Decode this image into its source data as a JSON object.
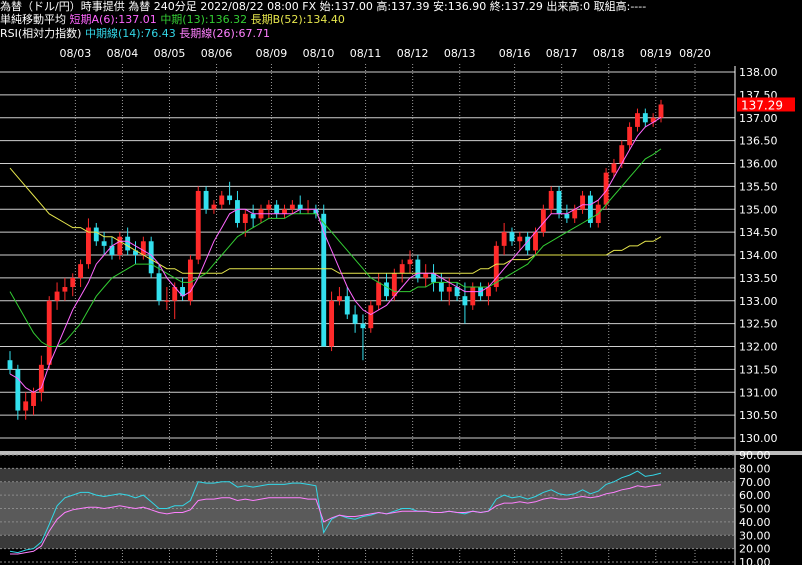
{
  "header": {
    "line1": "為替（ドル/円）時事提供 為替 240分足 2022/08/22 08:00 FX 始:137.00 高:137.39 安:136.90 終:137.29 出来高:0 取組高:----",
    "ma_title": "単純移動平均",
    "ma_short": "短期A(6):137.01",
    "ma_mid": "中期(13):136.32",
    "ma_long": "長期B(52):134.40",
    "rsi_title": "RSI(相対力指数)",
    "rsi_mid": "中期線(14):76.43",
    "rsi_long": "長期線(26):67.71"
  },
  "colors": {
    "up": "#ff2a2a",
    "down": "#33e0ee",
    "ma_short": "#ff66ff",
    "ma_mid": "#33cc33",
    "ma_long": "#e6e64d",
    "rsi_mid": "#33d6e6",
    "rsi_long": "#ff80ff",
    "grid": "#ffffff",
    "price_badge": "#ff0000"
  },
  "chart_data": [
    {
      "type": "candlestick",
      "title": "為替（ドル/円）240分足",
      "dates": [
        "08/03",
        "08/04",
        "08/05",
        "08/06",
        "08/09",
        "08/10",
        "08/11",
        "08/12",
        "08/13",
        "08/16",
        "08/17",
        "08/18",
        "08/19",
        "08/20"
      ],
      "ylim": [
        129.8,
        138.0
      ],
      "yticks": [
        "138.00",
        "137.50",
        "137.00",
        "136.50",
        "136.00",
        "135.50",
        "135.00",
        "134.50",
        "134.00",
        "133.50",
        "133.00",
        "132.50",
        "132.00",
        "131.50",
        "131.00",
        "130.50",
        "130.00"
      ],
      "last_price": "137.29",
      "candles": [
        {
          "o": 131.7,
          "h": 131.9,
          "l": 131.4,
          "c": 131.5
        },
        {
          "o": 131.5,
          "h": 131.6,
          "l": 130.4,
          "c": 130.6
        },
        {
          "o": 130.6,
          "h": 131.0,
          "l": 130.4,
          "c": 130.8
        },
        {
          "o": 130.7,
          "h": 131.1,
          "l": 130.5,
          "c": 131.0
        },
        {
          "o": 131.0,
          "h": 131.8,
          "l": 130.8,
          "c": 131.6
        },
        {
          "o": 131.6,
          "h": 133.1,
          "l": 131.5,
          "c": 133.0
        },
        {
          "o": 133.0,
          "h": 133.4,
          "l": 132.8,
          "c": 133.2
        },
        {
          "o": 133.2,
          "h": 133.5,
          "l": 133.0,
          "c": 133.3
        },
        {
          "o": 133.3,
          "h": 133.6,
          "l": 133.1,
          "c": 133.5
        },
        {
          "o": 133.5,
          "h": 133.9,
          "l": 133.3,
          "c": 133.8
        },
        {
          "o": 133.8,
          "h": 134.8,
          "l": 133.7,
          "c": 134.6
        },
        {
          "o": 134.6,
          "h": 134.7,
          "l": 134.2,
          "c": 134.3
        },
        {
          "o": 134.3,
          "h": 134.5,
          "l": 134.0,
          "c": 134.2
        },
        {
          "o": 134.2,
          "h": 134.4,
          "l": 133.9,
          "c": 134.0
        },
        {
          "o": 134.0,
          "h": 134.5,
          "l": 133.9,
          "c": 134.4
        },
        {
          "o": 134.4,
          "h": 134.6,
          "l": 134.0,
          "c": 134.1
        },
        {
          "o": 134.1,
          "h": 134.3,
          "l": 133.8,
          "c": 134.0
        },
        {
          "o": 134.0,
          "h": 134.4,
          "l": 133.9,
          "c": 134.3
        },
        {
          "o": 134.3,
          "h": 134.4,
          "l": 133.5,
          "c": 133.6
        },
        {
          "o": 133.6,
          "h": 133.8,
          "l": 132.9,
          "c": 133.0
        },
        {
          "o": 133.0,
          "h": 133.3,
          "l": 132.8,
          "c": 133.0
        },
        {
          "o": 133.0,
          "h": 133.4,
          "l": 132.6,
          "c": 133.3
        },
        {
          "o": 133.3,
          "h": 133.5,
          "l": 133.0,
          "c": 133.1
        },
        {
          "o": 133.0,
          "h": 134.0,
          "l": 132.9,
          "c": 133.9
        },
        {
          "o": 133.9,
          "h": 135.5,
          "l": 133.8,
          "c": 135.4
        },
        {
          "o": 135.4,
          "h": 135.5,
          "l": 134.9,
          "c": 135.0
        },
        {
          "o": 135.0,
          "h": 135.2,
          "l": 134.9,
          "c": 135.1
        },
        {
          "o": 135.1,
          "h": 135.4,
          "l": 135.0,
          "c": 135.3
        },
        {
          "o": 135.3,
          "h": 135.6,
          "l": 135.1,
          "c": 135.2
        },
        {
          "o": 135.2,
          "h": 135.4,
          "l": 134.6,
          "c": 134.7
        },
        {
          "o": 134.7,
          "h": 135.0,
          "l": 134.4,
          "c": 134.9
        },
        {
          "o": 134.9,
          "h": 135.1,
          "l": 134.6,
          "c": 134.8
        },
        {
          "o": 134.8,
          "h": 135.1,
          "l": 134.7,
          "c": 135.0
        },
        {
          "o": 135.0,
          "h": 135.2,
          "l": 134.8,
          "c": 135.1
        },
        {
          "o": 135.1,
          "h": 135.2,
          "l": 134.8,
          "c": 134.9
        },
        {
          "o": 134.9,
          "h": 135.1,
          "l": 134.8,
          "c": 135.0
        },
        {
          "o": 135.0,
          "h": 135.2,
          "l": 134.9,
          "c": 135.1
        },
        {
          "o": 135.1,
          "h": 135.3,
          "l": 134.9,
          "c": 135.0
        },
        {
          "o": 135.0,
          "h": 135.2,
          "l": 134.9,
          "c": 135.0
        },
        {
          "o": 135.0,
          "h": 135.1,
          "l": 134.8,
          "c": 134.9
        },
        {
          "o": 134.9,
          "h": 135.1,
          "l": 132.0,
          "c": 132.0
        },
        {
          "o": 132.0,
          "h": 133.2,
          "l": 131.9,
          "c": 133.0
        },
        {
          "o": 133.0,
          "h": 133.3,
          "l": 132.9,
          "c": 133.1
        },
        {
          "o": 133.1,
          "h": 133.3,
          "l": 132.6,
          "c": 132.7
        },
        {
          "o": 132.7,
          "h": 132.9,
          "l": 132.3,
          "c": 132.5
        },
        {
          "o": 132.5,
          "h": 132.7,
          "l": 131.7,
          "c": 132.4
        },
        {
          "o": 132.4,
          "h": 133.0,
          "l": 132.3,
          "c": 132.9
        },
        {
          "o": 132.9,
          "h": 133.6,
          "l": 132.8,
          "c": 133.4
        },
        {
          "o": 133.4,
          "h": 133.6,
          "l": 133.0,
          "c": 133.1
        },
        {
          "o": 133.1,
          "h": 133.7,
          "l": 133.0,
          "c": 133.6
        },
        {
          "o": 133.6,
          "h": 133.9,
          "l": 133.4,
          "c": 133.8
        },
        {
          "o": 133.8,
          "h": 134.1,
          "l": 133.6,
          "c": 133.9
        },
        {
          "o": 133.9,
          "h": 134.0,
          "l": 133.4,
          "c": 133.5
        },
        {
          "o": 133.5,
          "h": 133.8,
          "l": 133.3,
          "c": 133.6
        },
        {
          "o": 133.6,
          "h": 133.8,
          "l": 133.2,
          "c": 133.4
        },
        {
          "o": 133.4,
          "h": 133.6,
          "l": 133.0,
          "c": 133.2
        },
        {
          "o": 133.2,
          "h": 133.5,
          "l": 132.9,
          "c": 133.3
        },
        {
          "o": 133.3,
          "h": 133.4,
          "l": 133.0,
          "c": 133.1
        },
        {
          "o": 133.1,
          "h": 133.4,
          "l": 132.5,
          "c": 132.9
        },
        {
          "o": 132.9,
          "h": 133.4,
          "l": 132.8,
          "c": 133.3
        },
        {
          "o": 133.3,
          "h": 133.4,
          "l": 133.0,
          "c": 133.1
        },
        {
          "o": 133.1,
          "h": 133.4,
          "l": 132.9,
          "c": 133.3
        },
        {
          "o": 133.3,
          "h": 134.3,
          "l": 133.2,
          "c": 134.2
        },
        {
          "o": 134.2,
          "h": 134.7,
          "l": 134.0,
          "c": 134.5
        },
        {
          "o": 134.5,
          "h": 134.6,
          "l": 134.2,
          "c": 134.3
        },
        {
          "o": 134.3,
          "h": 134.5,
          "l": 134.1,
          "c": 134.4
        },
        {
          "o": 134.4,
          "h": 134.5,
          "l": 134.0,
          "c": 134.1
        },
        {
          "o": 134.1,
          "h": 134.6,
          "l": 134.0,
          "c": 134.5
        },
        {
          "o": 134.5,
          "h": 135.1,
          "l": 134.4,
          "c": 135.0
        },
        {
          "o": 135.0,
          "h": 135.5,
          "l": 134.9,
          "c": 135.4
        },
        {
          "o": 135.4,
          "h": 135.5,
          "l": 134.8,
          "c": 134.9
        },
        {
          "o": 134.9,
          "h": 135.1,
          "l": 134.7,
          "c": 134.8
        },
        {
          "o": 134.8,
          "h": 135.1,
          "l": 134.7,
          "c": 135.0
        },
        {
          "o": 135.0,
          "h": 135.4,
          "l": 134.9,
          "c": 135.3
        },
        {
          "o": 135.3,
          "h": 135.4,
          "l": 134.6,
          "c": 134.7
        },
        {
          "o": 134.7,
          "h": 135.2,
          "l": 134.6,
          "c": 135.1
        },
        {
          "o": 135.1,
          "h": 135.9,
          "l": 135.0,
          "c": 135.8
        },
        {
          "o": 135.8,
          "h": 136.1,
          "l": 135.7,
          "c": 136.0
        },
        {
          "o": 136.0,
          "h": 136.5,
          "l": 135.9,
          "c": 136.4
        },
        {
          "o": 136.4,
          "h": 136.9,
          "l": 136.3,
          "c": 136.8
        },
        {
          "o": 136.8,
          "h": 137.2,
          "l": 136.7,
          "c": 137.1
        },
        {
          "o": 137.1,
          "h": 137.2,
          "l": 136.8,
          "c": 136.9
        },
        {
          "o": 136.9,
          "h": 137.1,
          "l": 136.8,
          "c": 137.0
        },
        {
          "o": 137.0,
          "h": 137.39,
          "l": 136.9,
          "c": 137.29
        }
      ],
      "ma_short": [
        131.4,
        131.3,
        131.1,
        131.0,
        131.1,
        131.6,
        132.0,
        132.4,
        132.8,
        133.1,
        133.4,
        133.8,
        134.0,
        134.2,
        134.3,
        134.3,
        134.2,
        134.1,
        134.0,
        133.8,
        133.5,
        133.3,
        133.1,
        133.2,
        133.5,
        133.9,
        134.3,
        134.6,
        134.9,
        135.0,
        135.0,
        134.9,
        134.9,
        134.9,
        134.9,
        134.9,
        134.9,
        135.0,
        135.0,
        135.0,
        134.5,
        134.1,
        133.7,
        133.3,
        133.0,
        132.8,
        132.7,
        132.8,
        132.9,
        133.1,
        133.3,
        133.5,
        133.6,
        133.6,
        133.6,
        133.5,
        133.4,
        133.3,
        133.2,
        133.2,
        133.2,
        133.3,
        133.5,
        133.7,
        133.9,
        134.1,
        134.3,
        134.5,
        134.7,
        134.9,
        134.9,
        134.9,
        135.0,
        135.1,
        135.1,
        135.2,
        135.4,
        135.7,
        136.0,
        136.3,
        136.6,
        136.8,
        136.9,
        137.01
      ],
      "ma_mid": [
        133.2,
        132.9,
        132.6,
        132.3,
        132.1,
        132.0,
        132.0,
        132.1,
        132.3,
        132.5,
        132.8,
        133.1,
        133.3,
        133.5,
        133.6,
        133.7,
        133.8,
        133.8,
        133.8,
        133.7,
        133.6,
        133.5,
        133.4,
        133.4,
        133.5,
        133.6,
        133.8,
        134.0,
        134.2,
        134.4,
        134.5,
        134.6,
        134.7,
        134.8,
        134.8,
        134.8,
        134.9,
        134.9,
        134.9,
        134.9,
        134.7,
        134.5,
        134.3,
        134.1,
        133.9,
        133.7,
        133.5,
        133.4,
        133.3,
        133.2,
        133.2,
        133.2,
        133.3,
        133.3,
        133.4,
        133.4,
        133.4,
        133.4,
        133.3,
        133.3,
        133.3,
        133.3,
        133.4,
        133.5,
        133.6,
        133.7,
        133.8,
        134.0,
        134.2,
        134.3,
        134.4,
        134.5,
        134.6,
        134.7,
        134.8,
        134.9,
        135.1,
        135.3,
        135.5,
        135.7,
        135.9,
        136.1,
        136.2,
        136.32
      ],
      "ma_long": [
        135.9,
        135.7,
        135.5,
        135.3,
        135.1,
        134.9,
        134.8,
        134.7,
        134.6,
        134.6,
        134.5,
        134.5,
        134.4,
        134.4,
        134.3,
        134.2,
        134.1,
        134.0,
        133.9,
        133.8,
        133.7,
        133.7,
        133.6,
        133.6,
        133.6,
        133.6,
        133.6,
        133.6,
        133.7,
        133.7,
        133.7,
        133.7,
        133.7,
        133.7,
        133.7,
        133.7,
        133.7,
        133.7,
        133.7,
        133.7,
        133.7,
        133.7,
        133.6,
        133.6,
        133.6,
        133.6,
        133.6,
        133.6,
        133.6,
        133.6,
        133.6,
        133.6,
        133.6,
        133.6,
        133.6,
        133.6,
        133.6,
        133.6,
        133.6,
        133.6,
        133.7,
        133.7,
        133.8,
        133.8,
        133.9,
        133.9,
        133.9,
        134.0,
        134.0,
        134.0,
        134.0,
        134.0,
        134.0,
        134.0,
        134.0,
        134.0,
        134.0,
        134.1,
        134.1,
        134.2,
        134.2,
        134.3,
        134.3,
        134.4
      ]
    },
    {
      "type": "line",
      "title": "RSI(相対力指数)",
      "ylim": [
        10,
        90
      ],
      "yticks": [
        "90.00",
        "80.00",
        "70.00",
        "60.00",
        "50.00",
        "40.00",
        "30.00",
        "20.00",
        "10.00"
      ],
      "series": [
        {
          "name": "中期線(14)",
          "color": "#33d6e6",
          "values": [
            18,
            17,
            19,
            20,
            25,
            38,
            52,
            58,
            60,
            62,
            62,
            60,
            59,
            60,
            61,
            60,
            58,
            60,
            55,
            50,
            50,
            52,
            52,
            56,
            70,
            69,
            69,
            70,
            70,
            66,
            67,
            66,
            67,
            68,
            68,
            68,
            69,
            69,
            68,
            67,
            32,
            42,
            45,
            43,
            42,
            44,
            45,
            47,
            46,
            48,
            50,
            50,
            48,
            48,
            47,
            47,
            48,
            47,
            46,
            48,
            47,
            48,
            57,
            60,
            58,
            59,
            57,
            59,
            62,
            64,
            61,
            60,
            61,
            64,
            61,
            63,
            68,
            70,
            73,
            75,
            78,
            74,
            75,
            76.43
          ]
        },
        {
          "name": "長期線(26)",
          "color": "#ff80ff",
          "values": [
            16,
            16,
            17,
            18,
            22,
            33,
            42,
            47,
            49,
            50,
            51,
            51,
            50,
            51,
            52,
            51,
            50,
            51,
            49,
            47,
            46,
            47,
            47,
            49,
            56,
            57,
            57,
            58,
            58,
            56,
            57,
            56,
            57,
            58,
            58,
            58,
            58,
            58,
            57,
            57,
            40,
            43,
            45,
            44,
            44,
            45,
            46,
            47,
            46,
            47,
            48,
            48,
            48,
            48,
            47,
            47,
            48,
            47,
            47,
            48,
            47,
            48,
            52,
            54,
            54,
            55,
            54,
            55,
            57,
            58,
            57,
            57,
            58,
            59,
            58,
            59,
            61,
            62,
            64,
            65,
            67,
            66,
            67,
            67.71
          ]
        }
      ]
    }
  ]
}
